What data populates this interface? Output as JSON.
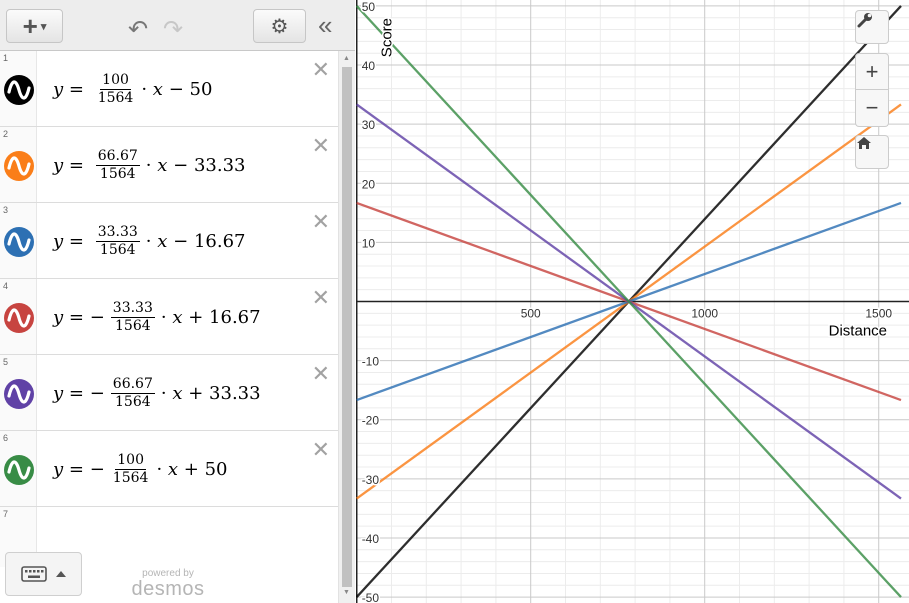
{
  "toolbar": {
    "add_glyph": "+",
    "caret": "▾",
    "undo_glyph": "↶",
    "redo_glyph": "↷",
    "settings_glyph": "⚙",
    "collapse_glyph": "«"
  },
  "expressions": [
    {
      "index": "1",
      "color": "#000000",
      "sign": "",
      "num": "100",
      "den": "1564",
      "tail": "− 50",
      "slope": 0.063939,
      "intercept": -50
    },
    {
      "index": "2",
      "color": "#fa7e19",
      "sign": "",
      "num": "66.67",
      "den": "1564",
      "tail": "− 33.33",
      "slope": 0.042628,
      "intercept": -33.33
    },
    {
      "index": "3",
      "color": "#2d70b3",
      "sign": "",
      "num": "33.33",
      "den": "1564",
      "tail": "− 16.67",
      "slope": 0.021311,
      "intercept": -16.67
    },
    {
      "index": "4",
      "color": "#c74440",
      "sign": "−",
      "num": "33.33",
      "den": "1564",
      "tail": "+ 16.67",
      "slope": -0.021311,
      "intercept": 16.67
    },
    {
      "index": "5",
      "color": "#6042a6",
      "sign": "−",
      "num": "66.67",
      "den": "1564",
      "tail": "+ 33.33",
      "slope": -0.042628,
      "intercept": 33.33
    },
    {
      "index": "6",
      "color": "#388c46",
      "sign": "−",
      "num": "100",
      "den": "1564",
      "tail": "+ 50",
      "slope": -0.063939,
      "intercept": 50
    }
  ],
  "empty_row_index": "7",
  "delete_glyph": "✕",
  "footer": {
    "powered_by": "powered by",
    "brand": "desmos"
  },
  "graph": {
    "x_axis_label": "Distance",
    "y_axis_label": "Score",
    "x_ticks": [
      "500",
      "1000",
      "1500"
    ],
    "y_ticks": [
      "50",
      "40",
      "30",
      "20",
      "10",
      "-10",
      "-20",
      "-30",
      "-40",
      "-50"
    ],
    "x_range": [
      -2,
      1587
    ],
    "y_range": [
      -51,
      51
    ],
    "zoom_in_glyph": "+",
    "zoom_out_glyph": "−"
  },
  "chart_data": {
    "type": "line",
    "xlabel": "Distance",
    "ylabel": "Score",
    "xlim": [
      -2,
      1587
    ],
    "ylim": [
      -51,
      51
    ],
    "grid": true,
    "series": [
      {
        "color": "#000000",
        "x": [
          0,
          1564
        ],
        "y": [
          -50,
          50
        ]
      },
      {
        "color": "#fa7e19",
        "x": [
          0,
          1564
        ],
        "y": [
          -33.33,
          33.33
        ]
      },
      {
        "color": "#2d70b3",
        "x": [
          0,
          1564
        ],
        "y": [
          -16.67,
          16.67
        ]
      },
      {
        "color": "#c74440",
        "x": [
          0,
          1564
        ],
        "y": [
          16.67,
          -16.67
        ]
      },
      {
        "color": "#6042a6",
        "x": [
          0,
          1564
        ],
        "y": [
          33.33,
          -33.33
        ]
      },
      {
        "color": "#388c46",
        "x": [
          0,
          1564
        ],
        "y": [
          50,
          -50
        ]
      }
    ]
  }
}
